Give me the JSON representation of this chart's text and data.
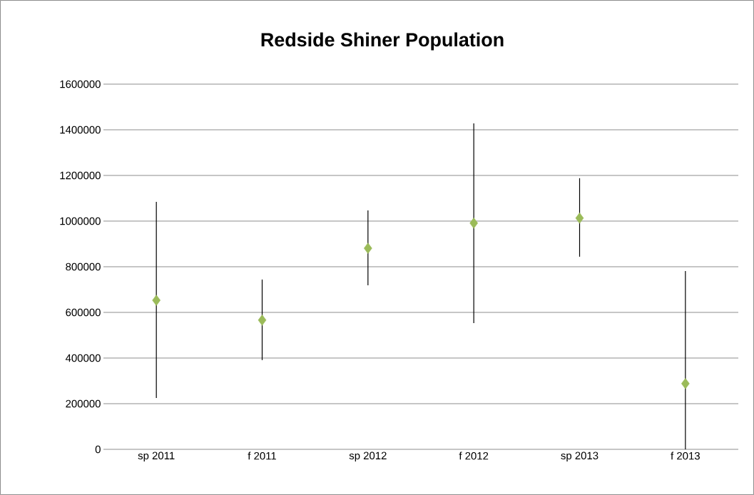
{
  "chart_data": {
    "type": "scatter",
    "title": "Redside Shiner Population",
    "categories": [
      "sp 2011",
      "f 2011",
      "sp 2012",
      "f 2012",
      "sp 2013",
      "f 2013"
    ],
    "values": [
      653000,
      566000,
      881000,
      991000,
      1013000,
      288000
    ],
    "errors": [
      [
        225000,
        1084000
      ],
      [
        391000,
        744000
      ],
      [
        719000,
        1047000
      ],
      [
        553000,
        1428000
      ],
      [
        844000,
        1188000
      ],
      [
        0,
        781000
      ]
    ],
    "color": "#9bbb59",
    "marker": "diamond",
    "ylim": [
      0,
      1600000
    ],
    "yticks": [
      0,
      200000,
      400000,
      600000,
      800000,
      1000000,
      1200000,
      1400000,
      1600000
    ],
    "grid": "y"
  }
}
